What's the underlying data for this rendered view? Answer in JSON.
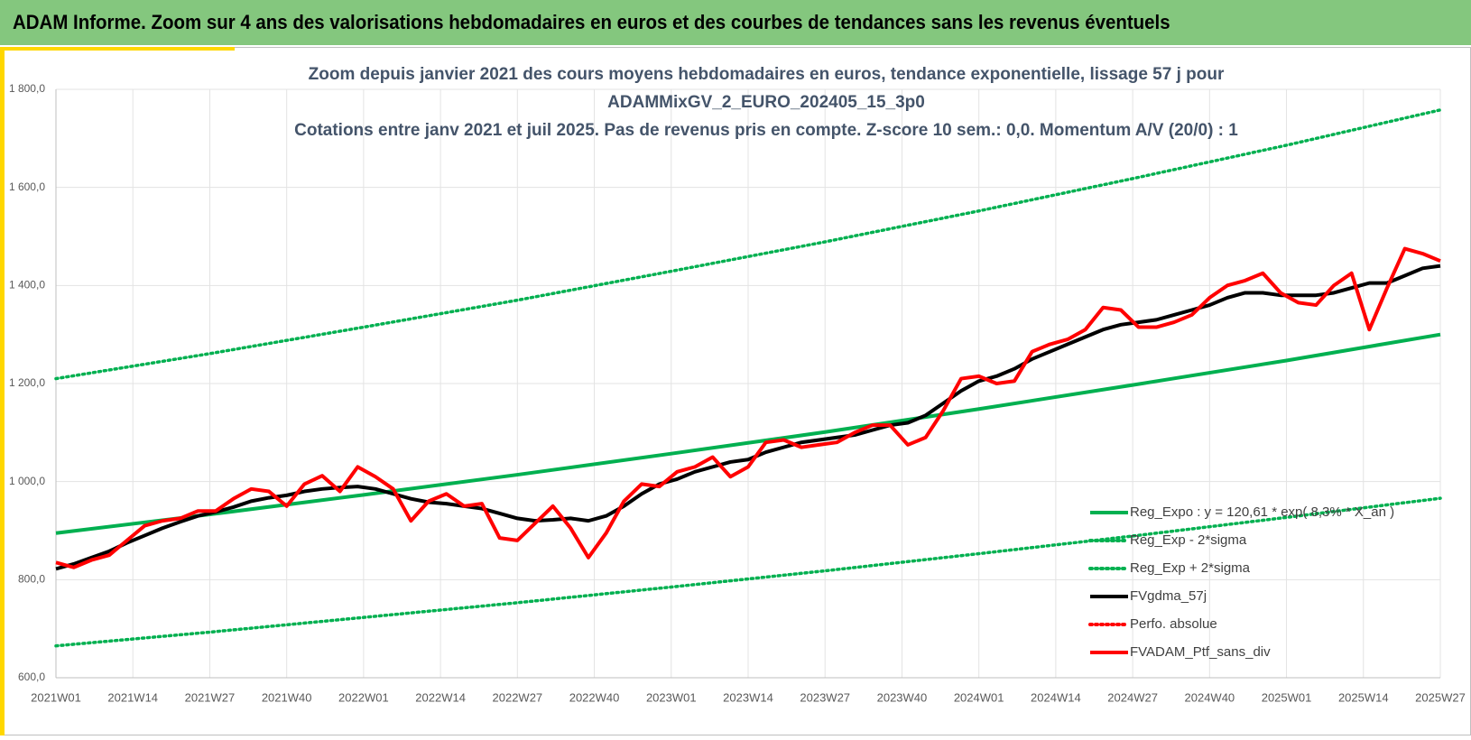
{
  "header": {
    "title": "ADAM Informe. Zoom sur 4 ans des valorisations hebdomadaires en euros et des courbes de tendances sans les revenus éventuels"
  },
  "chart_data": {
    "type": "line",
    "title_lines": [
      "Zoom depuis janvier 2021 des cours moyens hebdomadaires  en euros, tendance exponentielle, lissage 57 j pour",
      "ADAMMixGV_2_EURO_202405_15_3p0",
      "Cotations entre janv 2021 et juil 2025. Pas de revenus pris en compte. Z-score 10 sem.: 0,0. Momentum A/V (20/0) : 1"
    ],
    "xlim": [
      0,
      234
    ],
    "xticks": [
      {
        "value": 0,
        "label": "2021W01"
      },
      {
        "value": 13,
        "label": "2021W14"
      },
      {
        "value": 26,
        "label": "2021W27"
      },
      {
        "value": 39,
        "label": "2021W40"
      },
      {
        "value": 52,
        "label": "2022W01"
      },
      {
        "value": 65,
        "label": "2022W14"
      },
      {
        "value": 78,
        "label": "2022W27"
      },
      {
        "value": 91,
        "label": "2022W40"
      },
      {
        "value": 104,
        "label": "2023W01"
      },
      {
        "value": 117,
        "label": "2023W14"
      },
      {
        "value": 130,
        "label": "2023W27"
      },
      {
        "value": 143,
        "label": "2023W40"
      },
      {
        "value": 156,
        "label": "2024W01"
      },
      {
        "value": 169,
        "label": "2024W14"
      },
      {
        "value": 182,
        "label": "2024W27"
      },
      {
        "value": 195,
        "label": "2024W40"
      },
      {
        "value": 208,
        "label": "2025W01"
      },
      {
        "value": 221,
        "label": "2025W14"
      },
      {
        "value": 234,
        "label": "2025W27"
      }
    ],
    "ylim": [
      600,
      1800
    ],
    "yticks": [
      {
        "value": 600,
        "label": "600,0"
      },
      {
        "value": 800,
        "label": "800,0"
      },
      {
        "value": 1000,
        "label": "1 000,0"
      },
      {
        "value": 1200,
        "label": "1 200,0"
      },
      {
        "value": 1400,
        "label": "1 400,0"
      },
      {
        "value": 1600,
        "label": "1 600,0"
      },
      {
        "value": 1800,
        "label": "1 800,0"
      }
    ],
    "grid": true,
    "legend": "lower right",
    "series": [
      {
        "name": "Reg_Expo : y = 120,61 * exp( 8,3% * X_an )",
        "color": "#00b050",
        "dash": "solid",
        "x": [
          0,
          26,
          52,
          78,
          104,
          130,
          156,
          182,
          208,
          234
        ],
        "values": [
          895,
          933,
          973,
          1014,
          1057,
          1101,
          1148,
          1197,
          1247,
          1300
        ]
      },
      {
        "name": "Reg_Exp - 2*sigma",
        "color": "#00b050",
        "dash": "dotted",
        "x": [
          0,
          26,
          52,
          78,
          104,
          130,
          156,
          182,
          208,
          234
        ],
        "values": [
          665,
          693,
          723,
          753,
          785,
          818,
          853,
          889,
          927,
          966
        ]
      },
      {
        "name": "Reg_Exp + 2*sigma",
        "color": "#00b050",
        "dash": "dotted",
        "x": [
          0,
          26,
          52,
          78,
          104,
          130,
          156,
          182,
          208,
          234
        ],
        "values": [
          1210,
          1261,
          1315,
          1370,
          1429,
          1489,
          1552,
          1618,
          1686,
          1758
        ]
      },
      {
        "name": "FVgdma_57j",
        "color": "#000000",
        "dash": "solid",
        "x": [
          0,
          3,
          6,
          9,
          12,
          15,
          18,
          21,
          24,
          27,
          30,
          33,
          36,
          39,
          42,
          45,
          48,
          51,
          54,
          57,
          60,
          63,
          66,
          69,
          72,
          75,
          78,
          81,
          84,
          87,
          90,
          93,
          96,
          99,
          102,
          105,
          108,
          111,
          114,
          117,
          120,
          123,
          126,
          129,
          132,
          135,
          138,
          141,
          144,
          147,
          150,
          153,
          156,
          159,
          162,
          165,
          168,
          171,
          174,
          177,
          180,
          183,
          186,
          189,
          192,
          195,
          198,
          201,
          204,
          207,
          210,
          213,
          216,
          219,
          222,
          225,
          228,
          231,
          234
        ],
        "values": [
          822,
          832,
          845,
          858,
          875,
          890,
          905,
          918,
          930,
          938,
          948,
          960,
          967,
          972,
          980,
          985,
          988,
          990,
          985,
          975,
          965,
          958,
          955,
          950,
          945,
          935,
          925,
          920,
          922,
          925,
          920,
          930,
          950,
          975,
          995,
          1005,
          1020,
          1030,
          1040,
          1045,
          1060,
          1070,
          1080,
          1085,
          1090,
          1095,
          1105,
          1115,
          1120,
          1135,
          1160,
          1185,
          1205,
          1215,
          1230,
          1250,
          1265,
          1280,
          1295,
          1310,
          1320,
          1325,
          1330,
          1340,
          1350,
          1360,
          1375,
          1385,
          1385,
          1380,
          1380,
          1380,
          1385,
          1395,
          1405,
          1405,
          1420,
          1435,
          1440
        ]
      },
      {
        "name": "Perfo. absolue",
        "color": "#ff0000",
        "dash": "dotted",
        "x": [],
        "values": []
      },
      {
        "name": "FVADAM_Ptf_sans_div",
        "color": "#ff0000",
        "dash": "solid",
        "x": [
          0,
          3,
          6,
          9,
          12,
          15,
          18,
          21,
          24,
          27,
          30,
          33,
          36,
          39,
          42,
          45,
          48,
          51,
          54,
          57,
          60,
          63,
          66,
          69,
          72,
          75,
          78,
          81,
          84,
          87,
          90,
          93,
          96,
          99,
          102,
          105,
          108,
          111,
          114,
          117,
          120,
          123,
          126,
          129,
          132,
          135,
          138,
          141,
          144,
          147,
          150,
          153,
          156,
          159,
          162,
          165,
          168,
          171,
          174,
          177,
          180,
          183,
          186,
          189,
          192,
          195,
          198,
          201,
          204,
          207,
          210,
          213,
          216,
          219,
          222,
          225,
          228,
          231,
          234
        ],
        "values": [
          835,
          825,
          840,
          850,
          880,
          910,
          920,
          925,
          940,
          940,
          965,
          985,
          980,
          950,
          995,
          1012,
          980,
          1030,
          1010,
          985,
          920,
          960,
          975,
          950,
          955,
          885,
          880,
          915,
          950,
          905,
          845,
          895,
          960,
          995,
          990,
          1020,
          1030,
          1050,
          1010,
          1030,
          1080,
          1085,
          1070,
          1075,
          1080,
          1100,
          1115,
          1115,
          1075,
          1090,
          1145,
          1210,
          1215,
          1200,
          1205,
          1265,
          1280,
          1290,
          1310,
          1355,
          1350,
          1315,
          1315,
          1325,
          1340,
          1375,
          1400,
          1410,
          1425,
          1385,
          1365,
          1360,
          1400,
          1425,
          1310,
          1395,
          1475,
          1465,
          1450
        ]
      }
    ]
  }
}
